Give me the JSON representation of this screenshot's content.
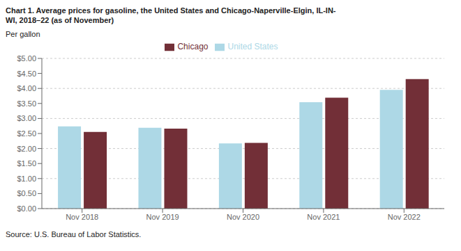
{
  "chart_data": {
    "type": "bar",
    "title": "Chart 1. Average prices for gasoline, the United States and Chicago-Naperville-Elgin, IL-IN-\nWI, 2018–22 (as of November)",
    "ylabel": "Per gallon",
    "source": "Source: U.S. Bureau of Labor Statistics.",
    "categories": [
      "Nov 2018",
      "Nov 2019",
      "Nov 2020",
      "Nov 2021",
      "Nov 2022"
    ],
    "series": [
      {
        "name": "United States",
        "color": "#ADD8E6",
        "values": [
          2.74,
          2.69,
          2.17,
          3.54,
          3.95
        ]
      },
      {
        "name": "Chicago",
        "color": "#722F37",
        "values": [
          2.55,
          2.66,
          2.19,
          3.69,
          4.31
        ]
      }
    ],
    "ylim": [
      0,
      5.0
    ],
    "yticks": [
      {
        "value": 0.0,
        "label": "$0.00"
      },
      {
        "value": 0.5,
        "label": "$0.50"
      },
      {
        "value": 1.0,
        "label": "$1.00"
      },
      {
        "value": 1.5,
        "label": "$1.50"
      },
      {
        "value": 2.0,
        "label": "$2.00"
      },
      {
        "value": 2.5,
        "label": "$2.50"
      },
      {
        "value": 3.0,
        "label": "$3.00"
      },
      {
        "value": 3.5,
        "label": "$3.50"
      },
      {
        "value": 4.0,
        "label": "$4.00"
      },
      {
        "value": 4.5,
        "label": "$4.50"
      },
      {
        "value": 5.0,
        "label": "$5.00"
      }
    ],
    "grid": true,
    "legend": "top"
  }
}
